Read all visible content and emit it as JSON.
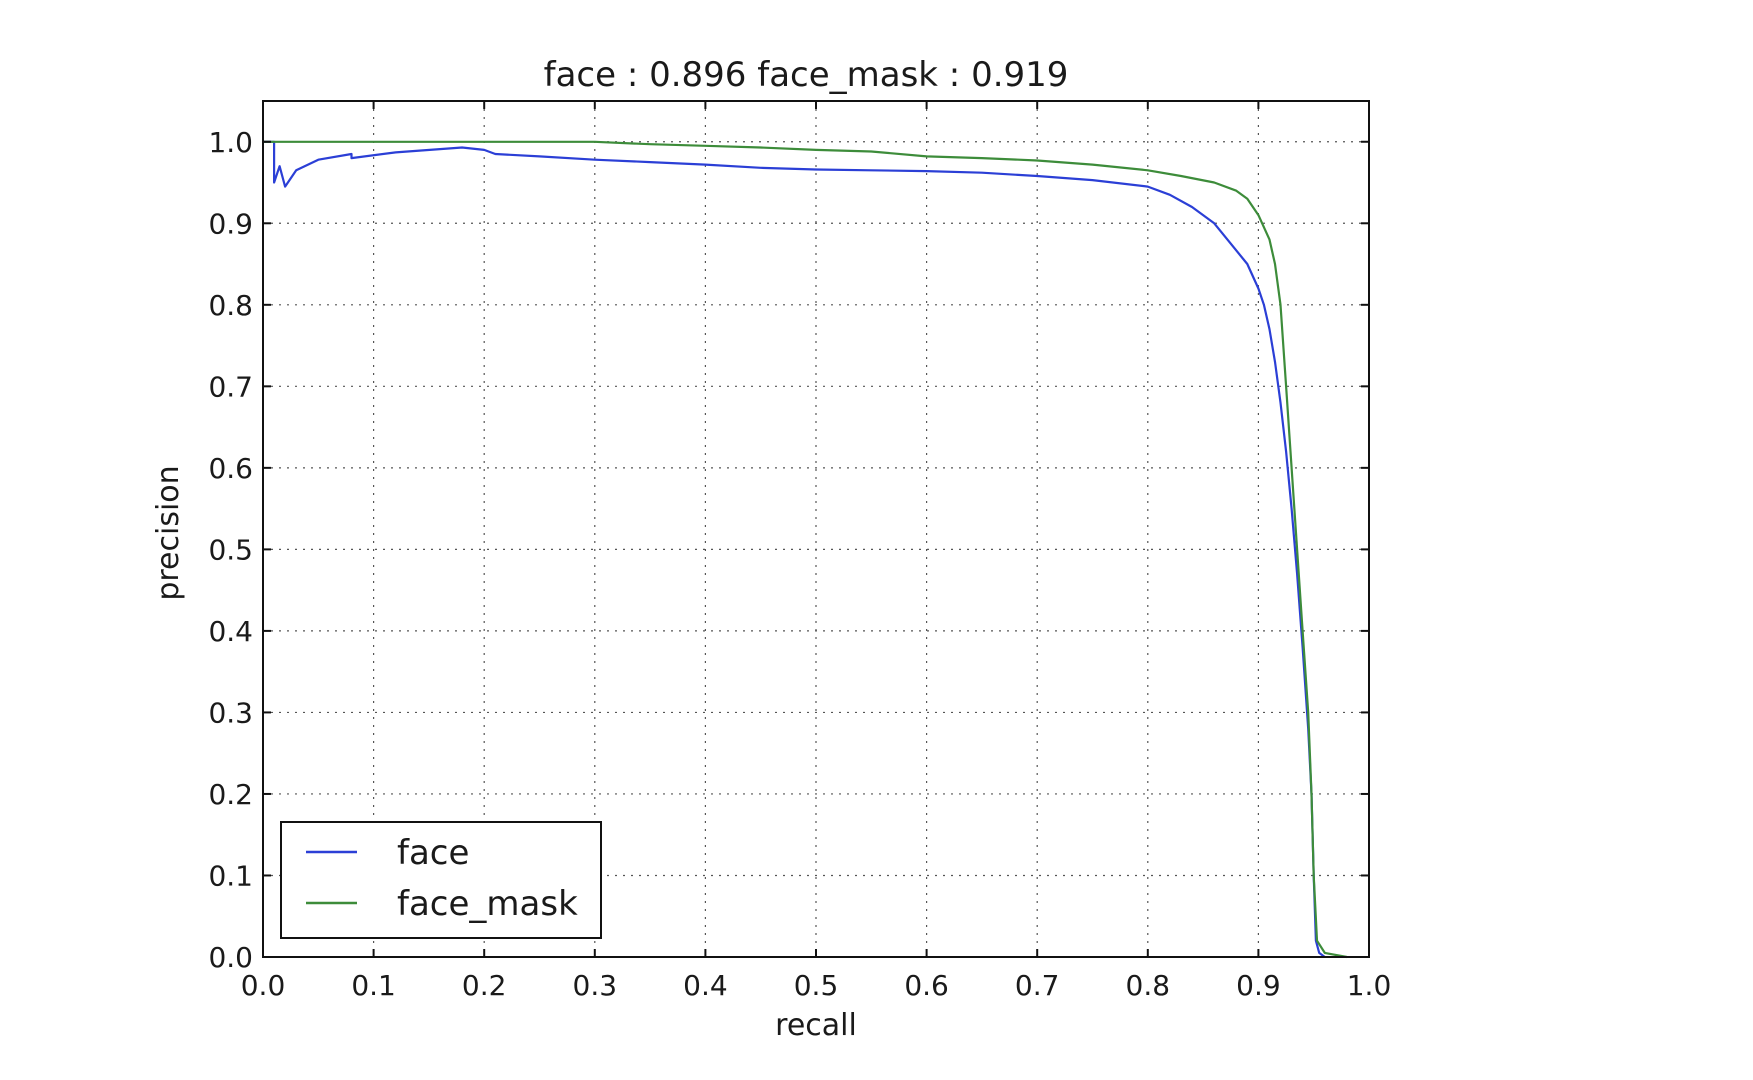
{
  "chart_data": {
    "type": "line",
    "title": "face : 0.896  face_mask : 0.919",
    "xlabel": "recall",
    "ylabel": "precision",
    "xlim": [
      0.0,
      1.0
    ],
    "ylim": [
      0.0,
      1.05
    ],
    "x_ticks": [
      "0.0",
      "0.1",
      "0.2",
      "0.3",
      "0.4",
      "0.5",
      "0.6",
      "0.7",
      "0.8",
      "0.9",
      "1.0"
    ],
    "y_ticks": [
      "0.0",
      "0.1",
      "0.2",
      "0.3",
      "0.4",
      "0.5",
      "0.6",
      "0.7",
      "0.8",
      "0.9",
      "1.0"
    ],
    "grid": true,
    "legend_position": "lower-left",
    "series": [
      {
        "name": "face",
        "color": "#2b3fd6",
        "points": [
          [
            0.0,
            1.0
          ],
          [
            0.01,
            1.0
          ],
          [
            0.01,
            0.95
          ],
          [
            0.015,
            0.97
          ],
          [
            0.02,
            0.945
          ],
          [
            0.03,
            0.965
          ],
          [
            0.05,
            0.978
          ],
          [
            0.08,
            0.985
          ],
          [
            0.08,
            0.98
          ],
          [
            0.12,
            0.987
          ],
          [
            0.18,
            0.993
          ],
          [
            0.2,
            0.99
          ],
          [
            0.21,
            0.985
          ],
          [
            0.25,
            0.982
          ],
          [
            0.3,
            0.978
          ],
          [
            0.35,
            0.975
          ],
          [
            0.4,
            0.972
          ],
          [
            0.45,
            0.968
          ],
          [
            0.5,
            0.966
          ],
          [
            0.55,
            0.965
          ],
          [
            0.6,
            0.964
          ],
          [
            0.65,
            0.962
          ],
          [
            0.7,
            0.958
          ],
          [
            0.75,
            0.953
          ],
          [
            0.8,
            0.945
          ],
          [
            0.82,
            0.935
          ],
          [
            0.84,
            0.92
          ],
          [
            0.86,
            0.9
          ],
          [
            0.875,
            0.875
          ],
          [
            0.89,
            0.85
          ],
          [
            0.9,
            0.82
          ],
          [
            0.905,
            0.8
          ],
          [
            0.91,
            0.77
          ],
          [
            0.915,
            0.73
          ],
          [
            0.92,
            0.68
          ],
          [
            0.925,
            0.62
          ],
          [
            0.93,
            0.55
          ],
          [
            0.935,
            0.47
          ],
          [
            0.94,
            0.38
          ],
          [
            0.945,
            0.28
          ],
          [
            0.948,
            0.2
          ],
          [
            0.95,
            0.1
          ],
          [
            0.952,
            0.02
          ],
          [
            0.955,
            0.005
          ],
          [
            0.96,
            0.0
          ]
        ]
      },
      {
        "name": "face_mask",
        "color": "#3d8c3a",
        "points": [
          [
            0.0,
            1.0
          ],
          [
            0.1,
            1.0
          ],
          [
            0.2,
            1.0
          ],
          [
            0.3,
            1.0
          ],
          [
            0.35,
            0.997
          ],
          [
            0.4,
            0.995
          ],
          [
            0.45,
            0.993
          ],
          [
            0.5,
            0.99
          ],
          [
            0.55,
            0.988
          ],
          [
            0.6,
            0.982
          ],
          [
            0.65,
            0.98
          ],
          [
            0.7,
            0.977
          ],
          [
            0.75,
            0.972
          ],
          [
            0.8,
            0.965
          ],
          [
            0.83,
            0.958
          ],
          [
            0.86,
            0.95
          ],
          [
            0.88,
            0.94
          ],
          [
            0.89,
            0.93
          ],
          [
            0.9,
            0.91
          ],
          [
            0.91,
            0.88
          ],
          [
            0.915,
            0.85
          ],
          [
            0.92,
            0.8
          ],
          [
            0.925,
            0.7
          ],
          [
            0.93,
            0.6
          ],
          [
            0.935,
            0.5
          ],
          [
            0.94,
            0.4
          ],
          [
            0.945,
            0.3
          ],
          [
            0.948,
            0.2
          ],
          [
            0.95,
            0.1
          ],
          [
            0.953,
            0.02
          ],
          [
            0.96,
            0.005
          ],
          [
            0.98,
            0.0
          ]
        ]
      }
    ]
  }
}
